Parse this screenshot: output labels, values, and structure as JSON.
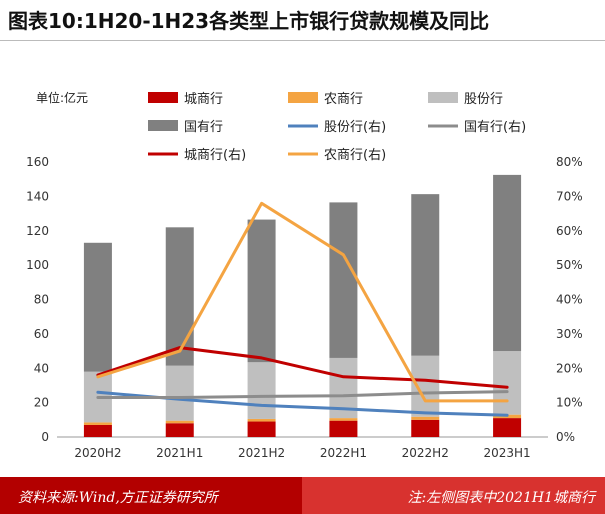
{
  "page": {
    "title": "图表10:1H20-1H23各类型上市银行贷款规模及同比",
    "source": "资料来源:Wind,方正证券研究所",
    "note": "注:左侧图表中2021H1城商行"
  },
  "chart_data": {
    "type": "bar",
    "stacked": true,
    "unit_label": "单位:亿元",
    "categories": [
      "2020H2",
      "2021H1",
      "2021H2",
      "2022H1",
      "2022H2",
      "2023H1"
    ],
    "left_axis": {
      "ylim": [
        0,
        160
      ],
      "ticks": [
        "0",
        "20",
        "40",
        "60",
        "80",
        "100",
        "120",
        "140",
        "160"
      ]
    },
    "right_axis": {
      "ylim": [
        0,
        80
      ],
      "ticks": [
        "0%",
        "10%",
        "20%",
        "30%",
        "40%",
        "50%",
        "60%",
        "70%",
        "80%"
      ]
    },
    "series": [
      {
        "name": "城商行",
        "kind": "bar",
        "color": "#c00000",
        "values": [
          7,
          8,
          9,
          9.5,
          10,
          11
        ]
      },
      {
        "name": "农商行",
        "kind": "bar",
        "color": "#f4a442",
        "values": [
          1.5,
          1.5,
          1.5,
          1.5,
          1.8,
          2
        ]
      },
      {
        "name": "股份行",
        "kind": "bar",
        "color": "#bfbfbf",
        "values": [
          29.5,
          32,
          33,
          35,
          35.5,
          37
        ]
      },
      {
        "name": "国有行",
        "kind": "bar",
        "color": "#808080",
        "values": [
          75,
          80.5,
          83,
          90.5,
          94,
          102.5
        ]
      },
      {
        "name": "股份行(右)",
        "kind": "line",
        "color": "#4f81bd",
        "values": [
          13,
          11,
          9.2,
          8.2,
          7,
          6.3
        ]
      },
      {
        "name": "国有行(右)",
        "kind": "line",
        "color": "#8c8c8c",
        "values": [
          11.5,
          11.5,
          11.8,
          12,
          12.8,
          13.2
        ]
      },
      {
        "name": "城商行(右)",
        "kind": "line",
        "color": "#c00000",
        "values": [
          18,
          26,
          23,
          17.5,
          16.5,
          14.5
        ]
      },
      {
        "name": "农商行(右)",
        "kind": "line",
        "color": "#f4a442",
        "values": [
          17.5,
          25,
          68,
          53,
          10.5,
          10.5
        ]
      }
    ]
  }
}
